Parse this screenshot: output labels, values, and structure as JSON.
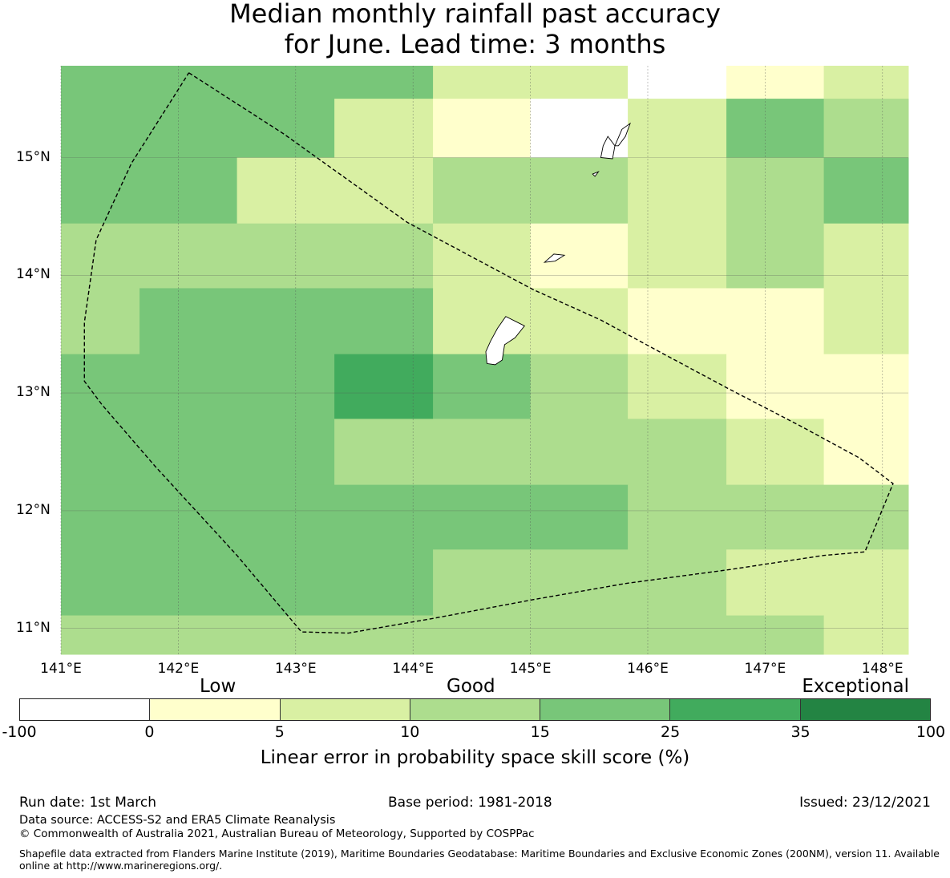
{
  "title": {
    "line1": "Median monthly rainfall past accuracy",
    "line2": "for June. Lead time: 3 months"
  },
  "map": {
    "lat_ticks": [
      "15°N",
      "14°N",
      "13°N",
      "12°N",
      "11°N"
    ],
    "lon_ticks": [
      "141°E",
      "142°E",
      "143°E",
      "144°E",
      "145°E",
      "146°E",
      "147°E",
      "148°E"
    ],
    "lon_range": [
      141.0,
      148.22
    ],
    "lat_range": [
      10.78,
      15.78
    ],
    "grid_cells": [
      {
        "lon": [
          141.0,
          143.33
        ],
        "lat": [
          15.5,
          15.78
        ],
        "value": 20
      },
      {
        "lon": [
          143.33,
          144.17
        ],
        "lat": [
          15.5,
          15.78
        ],
        "value": 20
      },
      {
        "lon": [
          144.17,
          145.83
        ],
        "lat": [
          15.5,
          15.78
        ],
        "value": 7
      },
      {
        "lon": [
          145.83,
          146.67
        ],
        "lat": [
          15.5,
          15.78
        ],
        "value": -50
      },
      {
        "lon": [
          146.67,
          147.5
        ],
        "lat": [
          15.5,
          15.78
        ],
        "value": 2
      },
      {
        "lon": [
          147.5,
          148.22
        ],
        "lat": [
          15.5,
          15.78
        ],
        "value": 7
      },
      {
        "lon": [
          141.0,
          143.33
        ],
        "lat": [
          15.0,
          15.5
        ],
        "value": 20
      },
      {
        "lon": [
          143.33,
          144.17
        ],
        "lat": [
          15.0,
          15.5
        ],
        "value": 7
      },
      {
        "lon": [
          144.17,
          145.0
        ],
        "lat": [
          15.0,
          15.5
        ],
        "value": 2
      },
      {
        "lon": [
          145.0,
          145.83
        ],
        "lat": [
          15.0,
          15.5
        ],
        "value": -50
      },
      {
        "lon": [
          145.83,
          146.67
        ],
        "lat": [
          15.0,
          15.5
        ],
        "value": 7
      },
      {
        "lon": [
          146.67,
          147.5
        ],
        "lat": [
          15.0,
          15.5
        ],
        "value": 20
      },
      {
        "lon": [
          147.5,
          148.22
        ],
        "lat": [
          15.0,
          15.5
        ],
        "value": 12
      },
      {
        "lon": [
          141.0,
          142.5
        ],
        "lat": [
          14.44,
          15.0
        ],
        "value": 20
      },
      {
        "lon": [
          142.5,
          144.17
        ],
        "lat": [
          14.44,
          15.0
        ],
        "value": 7
      },
      {
        "lon": [
          144.17,
          145.83
        ],
        "lat": [
          14.44,
          15.0
        ],
        "value": 12
      },
      {
        "lon": [
          145.83,
          146.67
        ],
        "lat": [
          14.44,
          15.0
        ],
        "value": 7
      },
      {
        "lon": [
          146.67,
          147.5
        ],
        "lat": [
          14.44,
          15.0
        ],
        "value": 12
      },
      {
        "lon": [
          147.5,
          148.22
        ],
        "lat": [
          14.44,
          15.0
        ],
        "value": 20
      },
      {
        "lon": [
          141.0,
          144.17
        ],
        "lat": [
          13.89,
          14.44
        ],
        "value": 12
      },
      {
        "lon": [
          144.17,
          145.0
        ],
        "lat": [
          13.89,
          14.44
        ],
        "value": 7
      },
      {
        "lon": [
          145.0,
          145.83
        ],
        "lat": [
          13.89,
          14.44
        ],
        "value": 2
      },
      {
        "lon": [
          145.83,
          146.67
        ],
        "lat": [
          13.89,
          14.44
        ],
        "value": 7
      },
      {
        "lon": [
          146.67,
          147.5
        ],
        "lat": [
          13.89,
          14.44
        ],
        "value": 12
      },
      {
        "lon": [
          147.5,
          148.22
        ],
        "lat": [
          13.89,
          14.44
        ],
        "value": 7
      },
      {
        "lon": [
          141.0,
          141.67
        ],
        "lat": [
          13.33,
          13.89
        ],
        "value": 12
      },
      {
        "lon": [
          141.67,
          144.17
        ],
        "lat": [
          13.33,
          13.89
        ],
        "value": 20
      },
      {
        "lon": [
          144.17,
          145.83
        ],
        "lat": [
          13.33,
          13.89
        ],
        "value": 7
      },
      {
        "lon": [
          145.83,
          147.5
        ],
        "lat": [
          13.33,
          13.89
        ],
        "value": 2
      },
      {
        "lon": [
          147.5,
          148.22
        ],
        "lat": [
          13.33,
          13.89
        ],
        "value": 7
      },
      {
        "lon": [
          141.0,
          143.33
        ],
        "lat": [
          12.78,
          13.33
        ],
        "value": 20
      },
      {
        "lon": [
          143.33,
          144.17
        ],
        "lat": [
          12.78,
          13.33
        ],
        "value": 30
      },
      {
        "lon": [
          144.17,
          145.0
        ],
        "lat": [
          12.78,
          13.33
        ],
        "value": 20
      },
      {
        "lon": [
          145.0,
          145.83
        ],
        "lat": [
          12.78,
          13.33
        ],
        "value": 12
      },
      {
        "lon": [
          145.83,
          146.67
        ],
        "lat": [
          12.78,
          13.33
        ],
        "value": 7
      },
      {
        "lon": [
          146.67,
          148.22
        ],
        "lat": [
          12.78,
          13.33
        ],
        "value": 2
      },
      {
        "lon": [
          141.0,
          143.33
        ],
        "lat": [
          12.22,
          12.78
        ],
        "value": 20
      },
      {
        "lon": [
          143.33,
          146.67
        ],
        "lat": [
          12.22,
          12.78
        ],
        "value": 12
      },
      {
        "lon": [
          146.67,
          147.5
        ],
        "lat": [
          12.22,
          12.78
        ],
        "value": 7
      },
      {
        "lon": [
          147.5,
          148.22
        ],
        "lat": [
          12.22,
          12.78
        ],
        "value": 2
      },
      {
        "lon": [
          141.0,
          145.83
        ],
        "lat": [
          11.67,
          12.22
        ],
        "value": 20
      },
      {
        "lon": [
          145.83,
          148.22
        ],
        "lat": [
          11.67,
          12.22
        ],
        "value": 12
      },
      {
        "lon": [
          141.0,
          144.17
        ],
        "lat": [
          11.11,
          11.67
        ],
        "value": 20
      },
      {
        "lon": [
          144.17,
          146.67
        ],
        "lat": [
          11.11,
          11.67
        ],
        "value": 12
      },
      {
        "lon": [
          146.67,
          148.22
        ],
        "lat": [
          11.11,
          11.67
        ],
        "value": 7
      },
      {
        "lon": [
          141.0,
          147.5
        ],
        "lat": [
          10.78,
          11.11
        ],
        "value": 12
      },
      {
        "lon": [
          147.5,
          148.22
        ],
        "lat": [
          10.78,
          11.11
        ],
        "value": 7
      }
    ],
    "eez_boundary": [
      [
        142.09,
        15.72
      ],
      [
        142.9,
        15.2
      ],
      [
        143.95,
        14.45
      ],
      [
        145.02,
        13.88
      ],
      [
        145.6,
        13.62
      ],
      [
        146.1,
        13.35
      ],
      [
        146.7,
        13.03
      ],
      [
        147.3,
        12.72
      ],
      [
        147.8,
        12.45
      ],
      [
        148.09,
        12.23
      ],
      [
        147.85,
        11.65
      ],
      [
        147.5,
        11.62
      ],
      [
        146.7,
        11.5
      ],
      [
        145.8,
        11.38
      ],
      [
        145.0,
        11.24
      ],
      [
        144.2,
        11.09
      ],
      [
        143.45,
        10.96
      ],
      [
        143.05,
        10.97
      ],
      [
        142.5,
        11.62
      ],
      [
        141.8,
        12.38
      ],
      [
        141.35,
        12.9
      ],
      [
        141.2,
        13.1
      ],
      [
        141.2,
        13.6
      ],
      [
        141.3,
        14.3
      ],
      [
        141.6,
        14.95
      ],
      [
        142.09,
        15.72
      ]
    ],
    "islands": [
      [
        [
          144.63,
          13.25
        ],
        [
          144.62,
          13.35
        ],
        [
          144.66,
          13.44
        ],
        [
          144.72,
          13.55
        ],
        [
          144.79,
          13.65
        ],
        [
          144.87,
          13.61
        ],
        [
          144.95,
          13.57
        ],
        [
          144.87,
          13.47
        ],
        [
          144.78,
          13.41
        ],
        [
          144.76,
          13.28
        ],
        [
          144.7,
          13.24
        ],
        [
          144.63,
          13.25
        ]
      ],
      [
        [
          145.12,
          14.11
        ],
        [
          145.2,
          14.18
        ],
        [
          145.29,
          14.17
        ],
        [
          145.21,
          14.12
        ],
        [
          145.12,
          14.11
        ]
      ],
      [
        [
          145.6,
          15.0
        ],
        [
          145.62,
          15.1
        ],
        [
          145.66,
          15.18
        ],
        [
          145.72,
          15.1
        ],
        [
          145.7,
          14.99
        ],
        [
          145.6,
          15.0
        ]
      ],
      [
        [
          145.72,
          15.1
        ],
        [
          145.78,
          15.24
        ],
        [
          145.85,
          15.29
        ],
        [
          145.81,
          15.18
        ],
        [
          145.75,
          15.1
        ],
        [
          145.72,
          15.1
        ]
      ],
      [
        [
          145.53,
          14.86
        ],
        [
          145.58,
          14.88
        ],
        [
          145.55,
          14.84
        ],
        [
          145.53,
          14.86
        ]
      ]
    ]
  },
  "legend": {
    "categories": [
      "Low",
      "Good",
      "Exceptional"
    ],
    "tick_labels": [
      "-100",
      "0",
      "5",
      "10",
      "15",
      "25",
      "35",
      "100"
    ],
    "colors": [
      "#ffffff",
      "#ffffcc",
      "#d9f0a3",
      "#addd8e",
      "#78c679",
      "#41ab5d",
      "#238443"
    ],
    "label": "Linear error in probability space skill score (%)"
  },
  "footer": {
    "run_date": "Run date: 1st March",
    "base_period": "Base period: 1981-2018",
    "issued": "Issued: 23/12/2021",
    "data_source": "Data source: ACCESS-S2 and ERA5 Climate Reanalysis",
    "copyright": "© Commonwealth of Australia 2021, Australian Bureau of Meteorology, Supported by COSPPac",
    "shapefile": "Shapefile data extracted from Flanders Marine Institute (2019), Maritime Boundaries Geodatabase: Maritime Boundaries and Exclusive Economic Zones (200NM), version 11. Available online at http://www.marineregions.org/."
  }
}
